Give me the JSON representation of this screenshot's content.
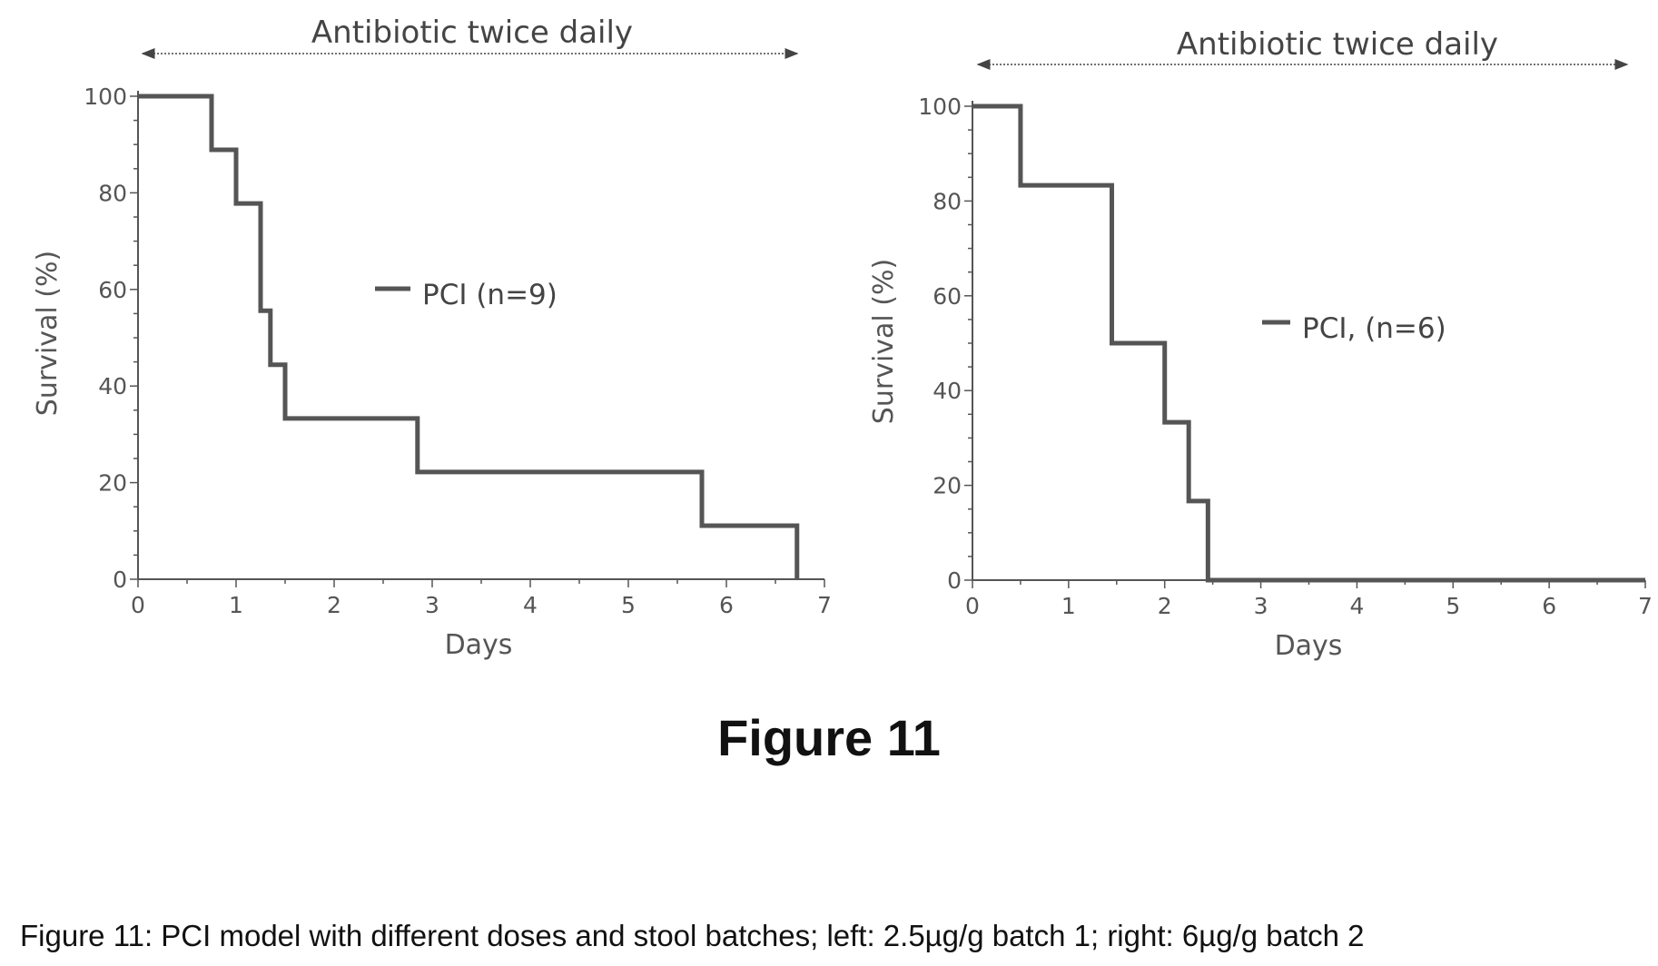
{
  "figure_label": "Figure 11",
  "caption": "Figure 11: PCI model with different doses and stool batches; left: 2.5µg/g batch 1; right: 6µg/g batch 2",
  "colors": {
    "line": "#555555",
    "axis": "#555555",
    "text": "#444444"
  },
  "chart_data": [
    {
      "type": "line",
      "step": true,
      "annotation": "Antibiotic twice daily",
      "xlabel": "Days",
      "ylabel": "Survival (%)",
      "xlim": [
        0,
        7
      ],
      "ylim": [
        0,
        100
      ],
      "xticks": [
        "0",
        "1",
        "2",
        "3",
        "4",
        "5",
        "6",
        "7"
      ],
      "yticks": [
        "0",
        "20",
        "40",
        "60",
        "80",
        "100"
      ],
      "legend": "upper-middle",
      "series": [
        {
          "name": "PCI (n=9)",
          "x": [
            0,
            0.75,
            1.0,
            1.25,
            1.35,
            1.5,
            2.85,
            5.75,
            6.72
          ],
          "y": [
            100,
            88.9,
            77.8,
            55.6,
            44.4,
            33.3,
            22.2,
            11.1,
            0
          ]
        }
      ]
    },
    {
      "type": "line",
      "step": true,
      "annotation": "Antibiotic twice daily",
      "xlabel": "Days",
      "ylabel": "Survival (%)",
      "xlim": [
        0,
        7
      ],
      "ylim": [
        0,
        100
      ],
      "xticks": [
        "0",
        "1",
        "2",
        "3",
        "4",
        "5",
        "6",
        "7"
      ],
      "yticks": [
        "0",
        "20",
        "40",
        "60",
        "80",
        "100"
      ],
      "legend": "middle-right",
      "series": [
        {
          "name": "PCI, (n=6)",
          "x": [
            0,
            0.5,
            1.45,
            2.0,
            2.25,
            2.45,
            7.0
          ],
          "y": [
            100,
            83.3,
            50,
            33.3,
            16.7,
            0,
            0
          ]
        }
      ]
    }
  ]
}
